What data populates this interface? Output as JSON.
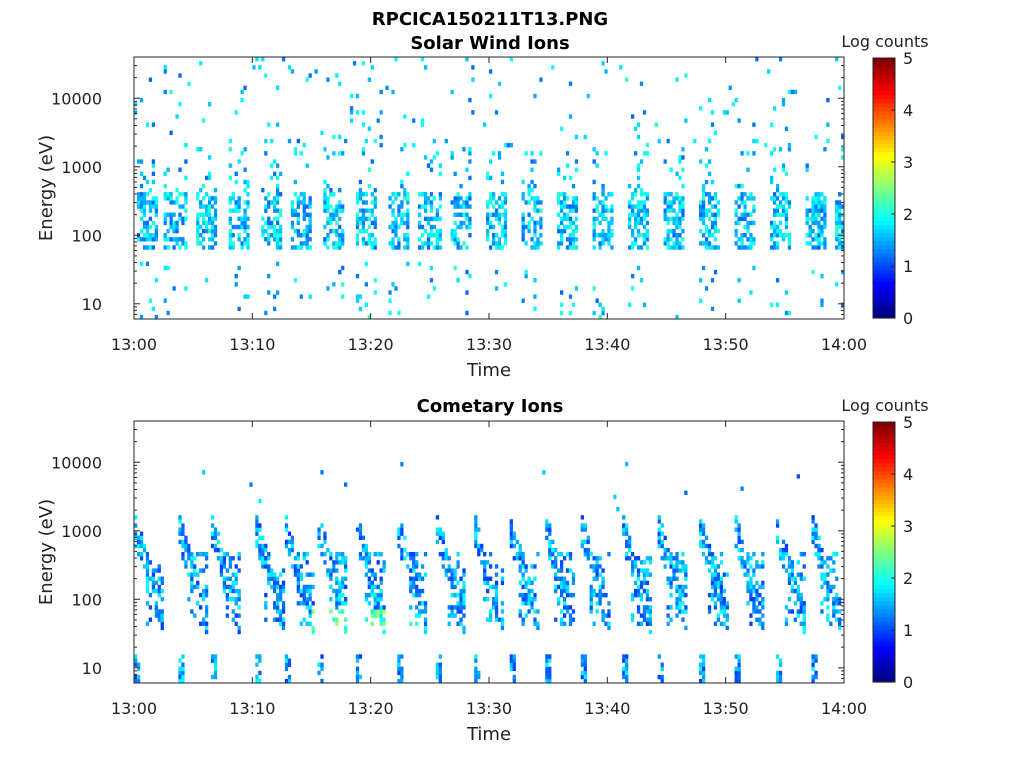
{
  "figure": {
    "filename_title": "RPCICA150211T13.PNG"
  },
  "chart_data": [
    {
      "type": "heatmap",
      "title": "Solar Wind Ions",
      "xlabel": "Time",
      "ylabel": "Energy (eV)",
      "x_ticks": [
        "13:00",
        "13:10",
        "13:20",
        "13:30",
        "13:40",
        "13:50",
        "14:00"
      ],
      "xlim_minutes": [
        0,
        60
      ],
      "y_scale": "log",
      "y_ticks": [
        10,
        100,
        1000,
        10000
      ],
      "y_tick_labels": [
        "10",
        "100",
        "1000",
        "10000"
      ],
      "ylim": [
        6,
        40000
      ],
      "colorbar": {
        "label": "Log counts",
        "ticks": [
          "0",
          "1",
          "2",
          "3",
          "4",
          "5"
        ],
        "range": [
          0,
          5
        ],
        "colormap": "jet"
      },
      "description": "Sparse ion counts mostly 1-2 log counts; repeating bursts roughly every 3 minutes between 60 and 400 eV, with scattered counts up to 40000 eV and isolated low-energy stripes near 8-30 eV.",
      "bursts_minutes": [
        0.5,
        2.8,
        5.5,
        8.2,
        11.0,
        13.5,
        16.2,
        19.0,
        21.7,
        24.3,
        27.0,
        30.0,
        33.0,
        36.0,
        39.0,
        42.0,
        45.0,
        48.0,
        51.0,
        54.0,
        57.0,
        59.5
      ],
      "main_band_ev": [
        60,
        400
      ],
      "main_level": 1.6
    },
    {
      "type": "heatmap",
      "title": "Cometary Ions",
      "xlabel": "Time",
      "ylabel": "Energy (eV)",
      "x_ticks": [
        "13:00",
        "13:10",
        "13:20",
        "13:30",
        "13:40",
        "13:50",
        "14:00"
      ],
      "xlim_minutes": [
        0,
        60
      ],
      "y_scale": "log",
      "y_ticks": [
        10,
        100,
        1000,
        10000
      ],
      "y_tick_labels": [
        "10",
        "100",
        "1000",
        "10000"
      ],
      "ylim": [
        6,
        40000
      ],
      "colorbar": {
        "label": "Log counts",
        "ticks": [
          "0",
          "1",
          "2",
          "3",
          "4",
          "5"
        ],
        "range": [
          0,
          5
        ],
        "colormap": "jet"
      },
      "description": "Dispersed cometary ion signatures: features start near 800 eV and decrease to ~50 eV over ~2 minutes, repeating about every 3.3 minutes; strongest (log ~2.5) near 30-60 eV around 13:15-13:23; vertical low-energy stripes near 8-15 eV.",
      "bursts_minutes": [
        0.3,
        4.0,
        6.8,
        10.5,
        13.0,
        15.8,
        19.0,
        22.5,
        25.8,
        29.0,
        32.0,
        35.0,
        38.0,
        41.5,
        44.5,
        48.0,
        51.0,
        54.5,
        57.5
      ],
      "main_level": 1.4
    }
  ]
}
